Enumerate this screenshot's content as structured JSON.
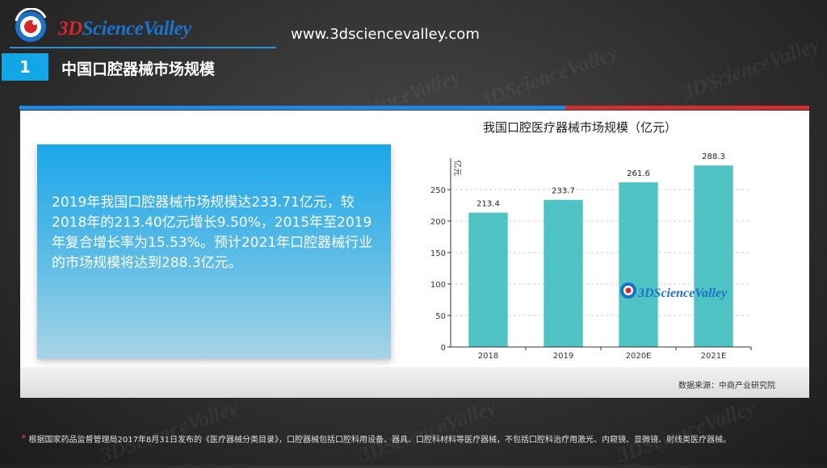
{
  "header": {
    "logo_text_part1": "3D",
    "logo_text_part2": "ScienceValley",
    "site_url": "www.3dsciencevalley.com",
    "section_number": "1",
    "section_title": "中国口腔器械市场规模"
  },
  "summary": {
    "text": "2019年我国口腔器械市场规模达233.71亿元，较2018年的213.40亿元增长9.50%，2015年至2019年复合增长率为15.53%。预计2021年口腔器械行业的市场规模将达到288.3亿元。"
  },
  "source": "数据来源：中商产业研究院",
  "footnote": "根据国家药品监督管理局2017年8月31日发布的《医疗器械分类目录》，口腔器械包括口腔科用设备、器具、口腔科材料等医疗器械，不包括口腔科治疗用激光、内窥镜、显微镜、射线类医疗器械。",
  "chart_watermark": "3DScienceValley",
  "colors": {
    "bar": "#4dc3c3",
    "accent_blue": "#12a6e6",
    "accent_red": "#d32f2f"
  },
  "chart_data": {
    "type": "bar",
    "title": "我国口腔医疗器械市场规模（亿元）",
    "ylabel": "亿元",
    "categories": [
      "2018",
      "2019",
      "2020E",
      "2021E"
    ],
    "values": [
      213.4,
      233.7,
      261.6,
      288.3
    ],
    "value_labels": [
      "213.4",
      "233.7",
      "261.6",
      "288.3"
    ],
    "yticks": [
      0,
      50,
      100,
      150,
      200,
      250
    ],
    "ylim": [
      0,
      300
    ],
    "grid": true
  }
}
